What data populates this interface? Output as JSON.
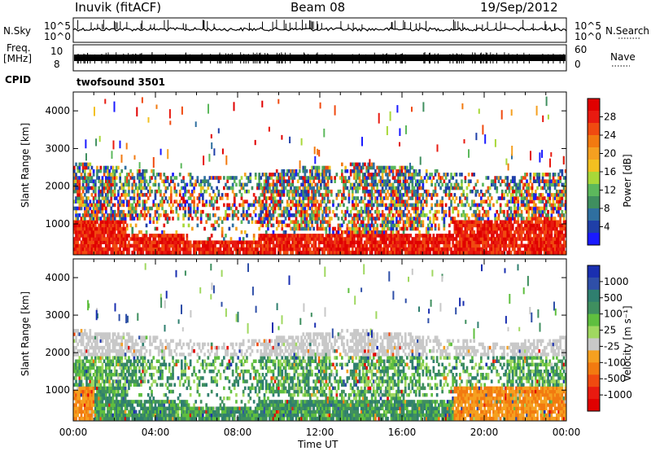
{
  "header": {
    "station": "Inuvik (fitACF)",
    "beam": "Beam 08",
    "date": "19/Sep/2012"
  },
  "strips": {
    "nsky_label": "N.Sky",
    "nsky_ticks": [
      "10^5",
      "10^0"
    ],
    "nsearch_label": "N.Search",
    "nsearch_ticks": [
      "10^5",
      "10^0"
    ],
    "freq_label_top": "Freq.",
    "freq_label_bottom": "[MHz]",
    "freq_ticks": [
      "10",
      "8"
    ],
    "nave_label": "Nave",
    "nave_ticks": [
      "60",
      "0"
    ],
    "cpid_label": "CPID",
    "cpid_value": "twofsound 3501"
  },
  "colors": {
    "power_scale": [
      "#1a1aff",
      "#1f3fa8",
      "#2f6fa0",
      "#3f8f5f",
      "#5cb85c",
      "#a8d838",
      "#f2c020",
      "#f5a020",
      "#f27a10",
      "#f04a10",
      "#e81a10",
      "#e00000"
    ],
    "velocity_scale": [
      "#1a2fb0",
      "#2f4fa8",
      "#2f7f6f",
      "#3f8f5f",
      "#5fbf3f",
      "#a0d860",
      "#c8c8c8",
      "#f5a020",
      "#f27a10",
      "#f04a10",
      "#e81a10",
      "#e00000"
    ]
  },
  "chart_data": [
    {
      "type": "heatmap",
      "title": "",
      "xlabel": "",
      "ylabel": "Slant Range [km]",
      "colorbar_label": "Power [dB]",
      "x_ticks": [
        "00:00",
        "04:00",
        "08:00",
        "12:00",
        "16:00",
        "20:00",
        "00:00"
      ],
      "y_ticks": [
        "1000",
        "2000",
        "3000",
        "4000"
      ],
      "ylim": [
        180,
        4500
      ],
      "colorbar_ticks": [
        "4",
        "8",
        "12",
        "16",
        "20",
        "24",
        "28"
      ],
      "colorbar_range": [
        0,
        30
      ]
    },
    {
      "type": "heatmap",
      "title": "",
      "xlabel": "Time UT",
      "ylabel": "Slant Range [km]",
      "colorbar_label": "Velocity [m s⁻¹]",
      "x_ticks": [
        "00:00",
        "04:00",
        "08:00",
        "12:00",
        "16:00",
        "20:00",
        "00:00"
      ],
      "y_ticks": [
        "1000",
        "2000",
        "3000",
        "4000"
      ],
      "ylim": [
        180,
        4500
      ],
      "colorbar_ticks": [
        "1000",
        "500",
        "100",
        "25",
        "-25",
        "-100",
        "-500",
        "-1000"
      ]
    }
  ]
}
